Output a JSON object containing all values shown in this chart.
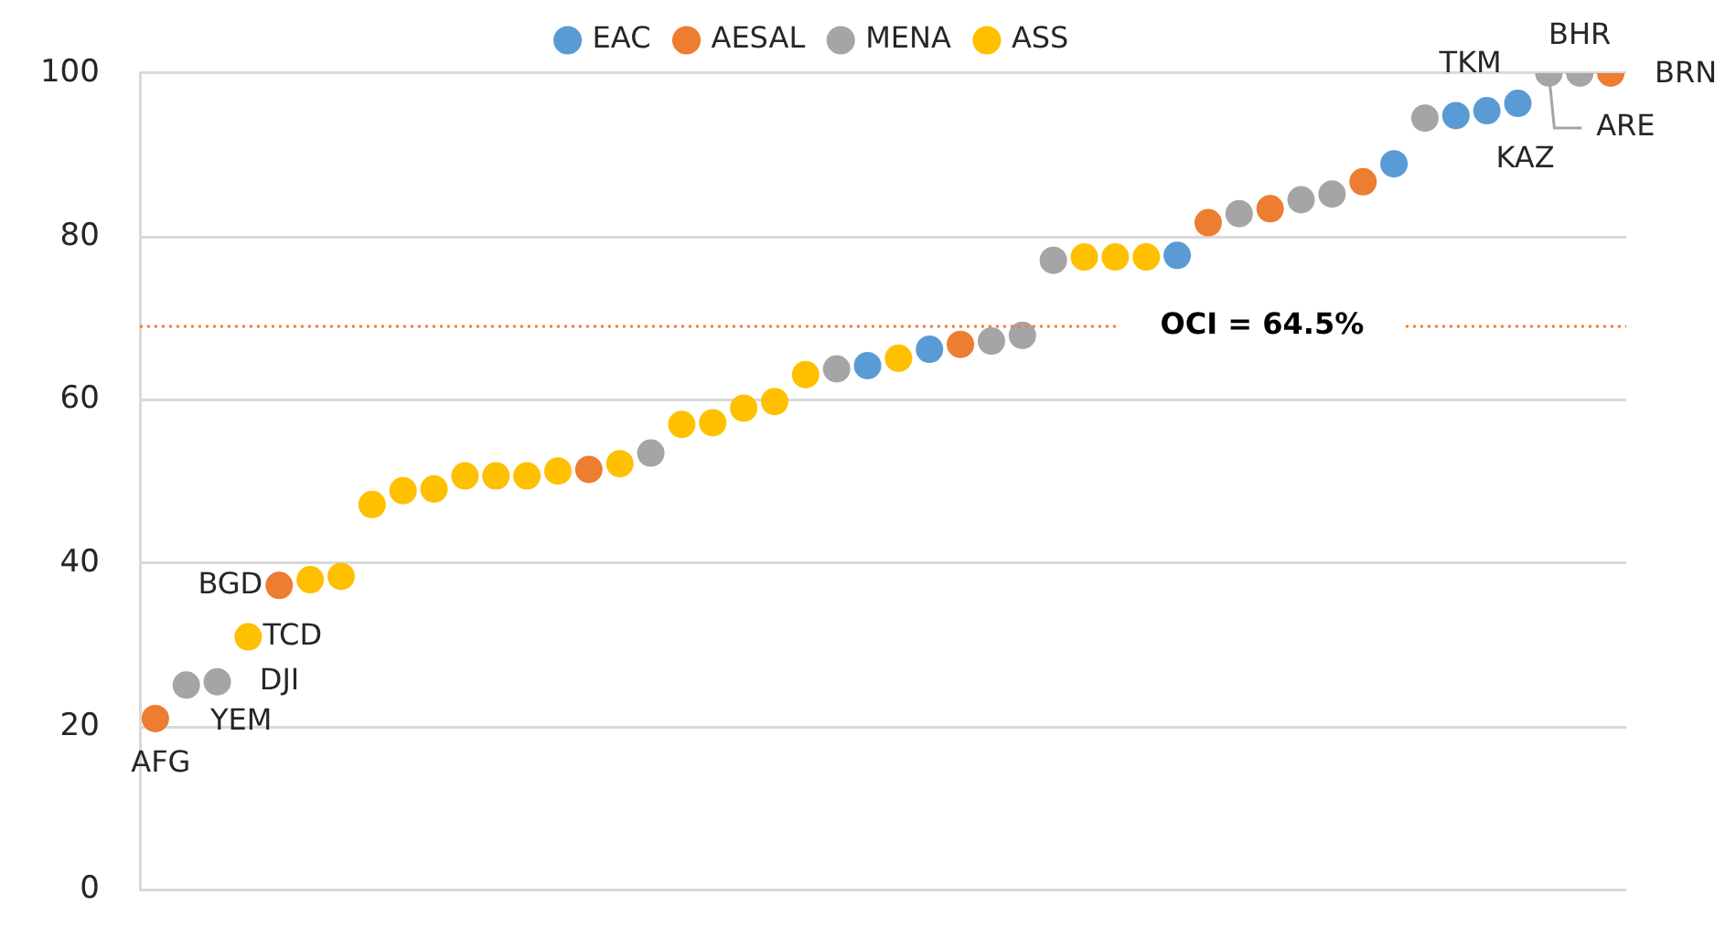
{
  "chart_data": {
    "type": "scatter",
    "categories": [
      null,
      null,
      null,
      null,
      null,
      null,
      null,
      null,
      null,
      null,
      null,
      null,
      null,
      null,
      null,
      null,
      null,
      null,
      null,
      null,
      null,
      null,
      null,
      null,
      null,
      null,
      null,
      null,
      null,
      null,
      null,
      null,
      null,
      null,
      null,
      null,
      null,
      null,
      null,
      null,
      null,
      null,
      null,
      null,
      null,
      null,
      null,
      null
    ],
    "series": [
      {
        "name": "EAC",
        "color": "#5b9bd5",
        "values": [
          null,
          null,
          null,
          null,
          null,
          null,
          null,
          null,
          null,
          null,
          null,
          null,
          null,
          null,
          null,
          null,
          null,
          null,
          null,
          null,
          null,
          null,
          null,
          64.2,
          null,
          66.2,
          null,
          null,
          null,
          null,
          null,
          null,
          null,
          77.7,
          null,
          null,
          null,
          null,
          null,
          null,
          88.9,
          null,
          94.8,
          95.4,
          96.3,
          null,
          null,
          null
        ]
      },
      {
        "name": "AESAL",
        "color": "#ed7d31",
        "values": [
          21.0,
          null,
          null,
          null,
          37.3,
          null,
          null,
          null,
          null,
          null,
          null,
          null,
          null,
          null,
          51.5,
          null,
          null,
          null,
          null,
          null,
          null,
          null,
          null,
          null,
          null,
          null,
          66.8,
          null,
          null,
          null,
          null,
          null,
          null,
          null,
          81.7,
          null,
          83.4,
          null,
          null,
          86.7,
          null,
          null,
          null,
          null,
          null,
          null,
          null,
          100
        ]
      },
      {
        "name": "MENA",
        "color": "#a5a5a5",
        "values": [
          null,
          25.1,
          25.5,
          null,
          null,
          null,
          null,
          null,
          null,
          null,
          null,
          null,
          null,
          null,
          null,
          null,
          53.5,
          null,
          null,
          null,
          null,
          null,
          63.8,
          null,
          null,
          null,
          null,
          67.2,
          67.9,
          77.1,
          null,
          null,
          null,
          null,
          null,
          82.8,
          null,
          84.5,
          85.2,
          null,
          null,
          94.5,
          null,
          null,
          null,
          100,
          100,
          null
        ]
      },
      {
        "name": "ASS",
        "color": "#ffc000",
        "values": [
          null,
          null,
          null,
          31.0,
          null,
          38.0,
          38.4,
          47.2,
          48.9,
          49.1,
          50.7,
          50.7,
          50.7,
          51.3,
          null,
          52.2,
          null,
          57.0,
          57.2,
          59.0,
          59.8,
          63.1,
          null,
          null,
          65.1,
          null,
          null,
          null,
          null,
          null,
          77.5,
          77.5,
          77.5,
          null,
          null,
          null,
          null,
          null,
          null,
          null,
          null,
          null,
          null,
          null,
          null,
          null,
          null,
          null
        ]
      }
    ],
    "ylim": [
      0,
      100
    ],
    "yticks": [
      0,
      20,
      40,
      60,
      80,
      100
    ],
    "tick_labels": "y",
    "grid": "y",
    "legend": "top",
    "marker": "circle",
    "ref_lines": [
      {
        "axis": "y",
        "value": 69,
        "color": "#ed7d31",
        "line_style": "dotted"
      }
    ],
    "annotations": [
      "AFG",
      "YEM",
      "DJI",
      "TCD",
      "BGD",
      "TKM",
      "KAZ",
      "ARE",
      "BHR",
      "BRN",
      "OCI = 64.5%"
    ]
  }
}
